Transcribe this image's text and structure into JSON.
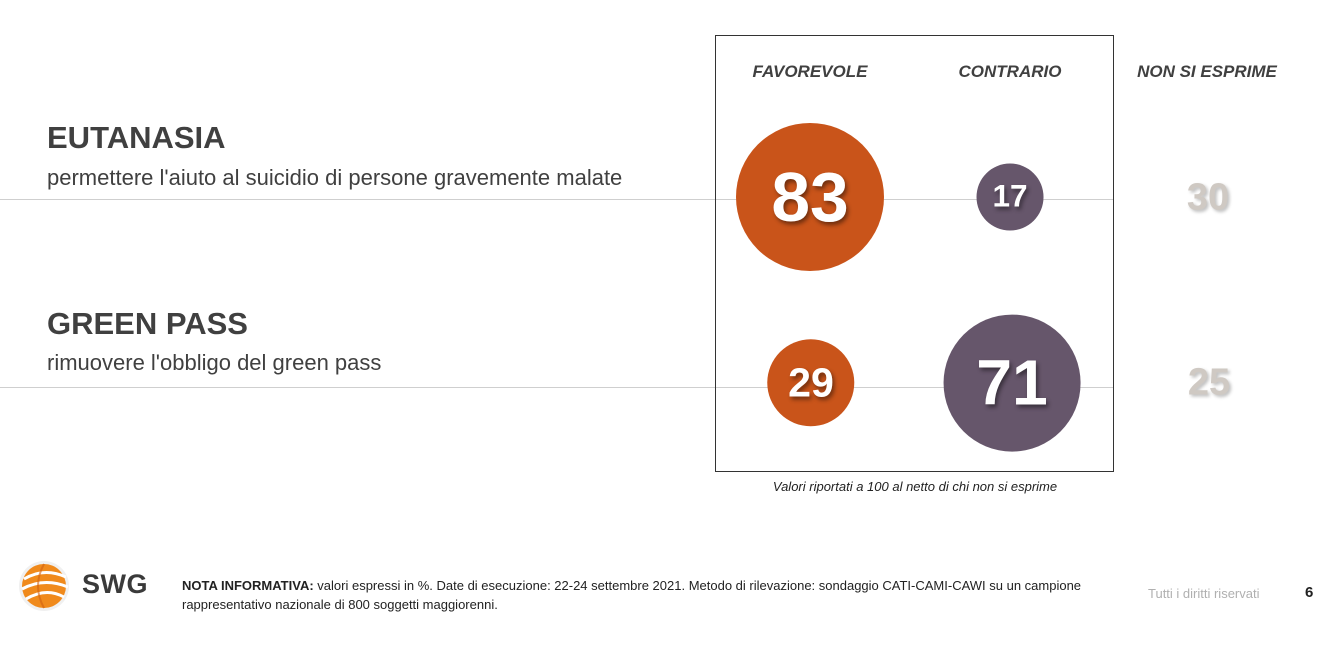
{
  "columns": {
    "favorevole": "FAVOREVOLE",
    "contrario": "CONTRARIO",
    "non_si_esprime": "NON SI ESPRIME"
  },
  "colors": {
    "favorevole": "#c9541a",
    "contrario": "#66566b",
    "non_si_esprime": "#cfc9c3"
  },
  "chart_data": {
    "type": "bubble",
    "categories": [
      "EUTANASIA",
      "GREEN PASS"
    ],
    "subtitles": [
      "permettere l'aiuto al suicidio di persone gravemente malate",
      "rimuovere l'obbligo del green pass"
    ],
    "series": [
      {
        "name": "FAVOREVOLE",
        "values": [
          83,
          29
        ]
      },
      {
        "name": "CONTRARIO",
        "values": [
          17,
          71
        ]
      },
      {
        "name": "NON SI ESPRIME",
        "values": [
          30,
          25
        ]
      }
    ],
    "note": "Valori riportati a 100 al netto di chi non si esprime"
  },
  "footer": {
    "brand": "SWG",
    "note_label": "NOTA INFORMATIVA:",
    "note_text": " valori espressi in %. Date di esecuzione: 22-24 settembre 2021. Metodo di rilevazione: sondaggio CATI-CAMI-CAWI su un campione rappresentativo nazionale di 800 soggetti maggiorenni.",
    "rights": "Tutti i diritti riservati",
    "page": "6"
  }
}
